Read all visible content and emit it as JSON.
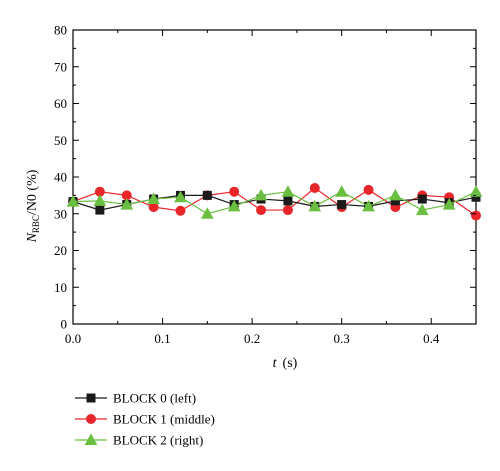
{
  "chart_data": {
    "type": "line",
    "xlabel": "t",
    "xlabel_unit": "(s)",
    "ylabel_main": "N",
    "ylabel_sub": "RBC",
    "ylabel_rest": "/N0 (%)",
    "xlim": [
      0.0,
      0.45
    ],
    "ylim": [
      0,
      80
    ],
    "x_ticks": [
      "0.0",
      "0.1",
      "0.2",
      "0.3",
      "0.4"
    ],
    "y_ticks": [
      "0",
      "10",
      "20",
      "30",
      "40",
      "50",
      "60",
      "70",
      "80"
    ],
    "grid": false,
    "legend_position": "bottom-left",
    "x": [
      0.0,
      0.03,
      0.06,
      0.09,
      0.12,
      0.15,
      0.18,
      0.21,
      0.24,
      0.27,
      0.3,
      0.33,
      0.36,
      0.39,
      0.42,
      0.45
    ],
    "series": [
      {
        "name": "BLOCK 0 (left)",
        "color": "#1a1a1a",
        "marker": "square",
        "values": [
          33.3,
          31.0,
          32.5,
          34.0,
          35.0,
          35.0,
          32.5,
          34.0,
          33.5,
          32.0,
          32.5,
          32.0,
          33.5,
          34.0,
          33.0,
          34.5
        ]
      },
      {
        "name": "BLOCK 1 (middle)",
        "color": "#e8262a",
        "marker": "circle",
        "values": [
          33.3,
          36.0,
          35.0,
          31.8,
          30.8,
          35.0,
          36.0,
          31.0,
          31.0,
          37.0,
          31.8,
          36.5,
          31.8,
          35.0,
          34.5,
          29.5
        ]
      },
      {
        "name": "BLOCK 2 (right)",
        "color": "#6abf40",
        "marker": "triangle",
        "values": [
          33.3,
          33.5,
          32.5,
          34.0,
          34.5,
          30.0,
          32.0,
          35.0,
          36.0,
          32.0,
          36.0,
          32.0,
          35.0,
          31.0,
          32.5,
          36.0
        ]
      }
    ]
  }
}
